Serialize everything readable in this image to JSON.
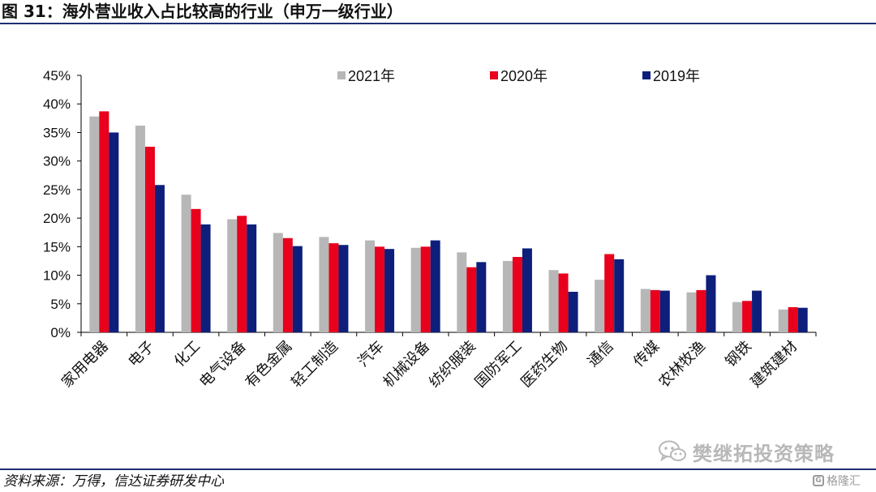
{
  "figure": {
    "title": "图 31：海外营业收入占比较高的行业（申万一级行业）",
    "source": "资料来源：万得，信达证券研发中心"
  },
  "watermark": {
    "text": "樊继拓投资策略",
    "icon": "wechat-icon"
  },
  "badge": {
    "icon": "gelonghui-logo-icon",
    "icon_glyph": "G",
    "text": "格隆汇"
  },
  "colors": {
    "series_2021": "#b7b7b7",
    "series_2020": "#e8001c",
    "series_2019": "#0d1f7a",
    "rule": "#1d2f73"
  },
  "chart_data": {
    "type": "bar",
    "title": "",
    "xlabel": "",
    "ylabel": "",
    "ylim": [
      0,
      45
    ],
    "y_ticks": [
      "0%",
      "5%",
      "10%",
      "15%",
      "20%",
      "25%",
      "30%",
      "35%",
      "40%",
      "45%"
    ],
    "y_tick_values": [
      0,
      5,
      10,
      15,
      20,
      25,
      30,
      35,
      40,
      45
    ],
    "grid": false,
    "legend_position": "top",
    "categories": [
      "家用电器",
      "电子",
      "化工",
      "电气设备",
      "有色金属",
      "轻工制造",
      "汽车",
      "机械设备",
      "纺织服装",
      "国防军工",
      "医药生物",
      "通信",
      "传媒",
      "农林牧渔",
      "钢铁",
      "建筑建材"
    ],
    "series": [
      {
        "name": "2021年",
        "color": "#b7b7b7",
        "values": [
          37.8,
          36.2,
          24.1,
          19.8,
          17.4,
          16.7,
          16.1,
          14.8,
          14.0,
          12.5,
          10.9,
          9.2,
          7.6,
          7.0,
          5.3,
          4.0
        ]
      },
      {
        "name": "2020年",
        "color": "#e8001c",
        "values": [
          38.7,
          32.5,
          21.6,
          20.4,
          16.5,
          15.6,
          15.0,
          15.0,
          11.4,
          13.2,
          10.3,
          13.7,
          7.4,
          7.4,
          5.5,
          4.4
        ]
      },
      {
        "name": "2019年",
        "color": "#0d1f7a",
        "values": [
          35.0,
          25.8,
          18.9,
          18.9,
          15.1,
          15.3,
          14.6,
          16.1,
          12.3,
          14.7,
          7.1,
          12.8,
          7.3,
          10.0,
          7.3,
          4.3
        ]
      }
    ]
  }
}
